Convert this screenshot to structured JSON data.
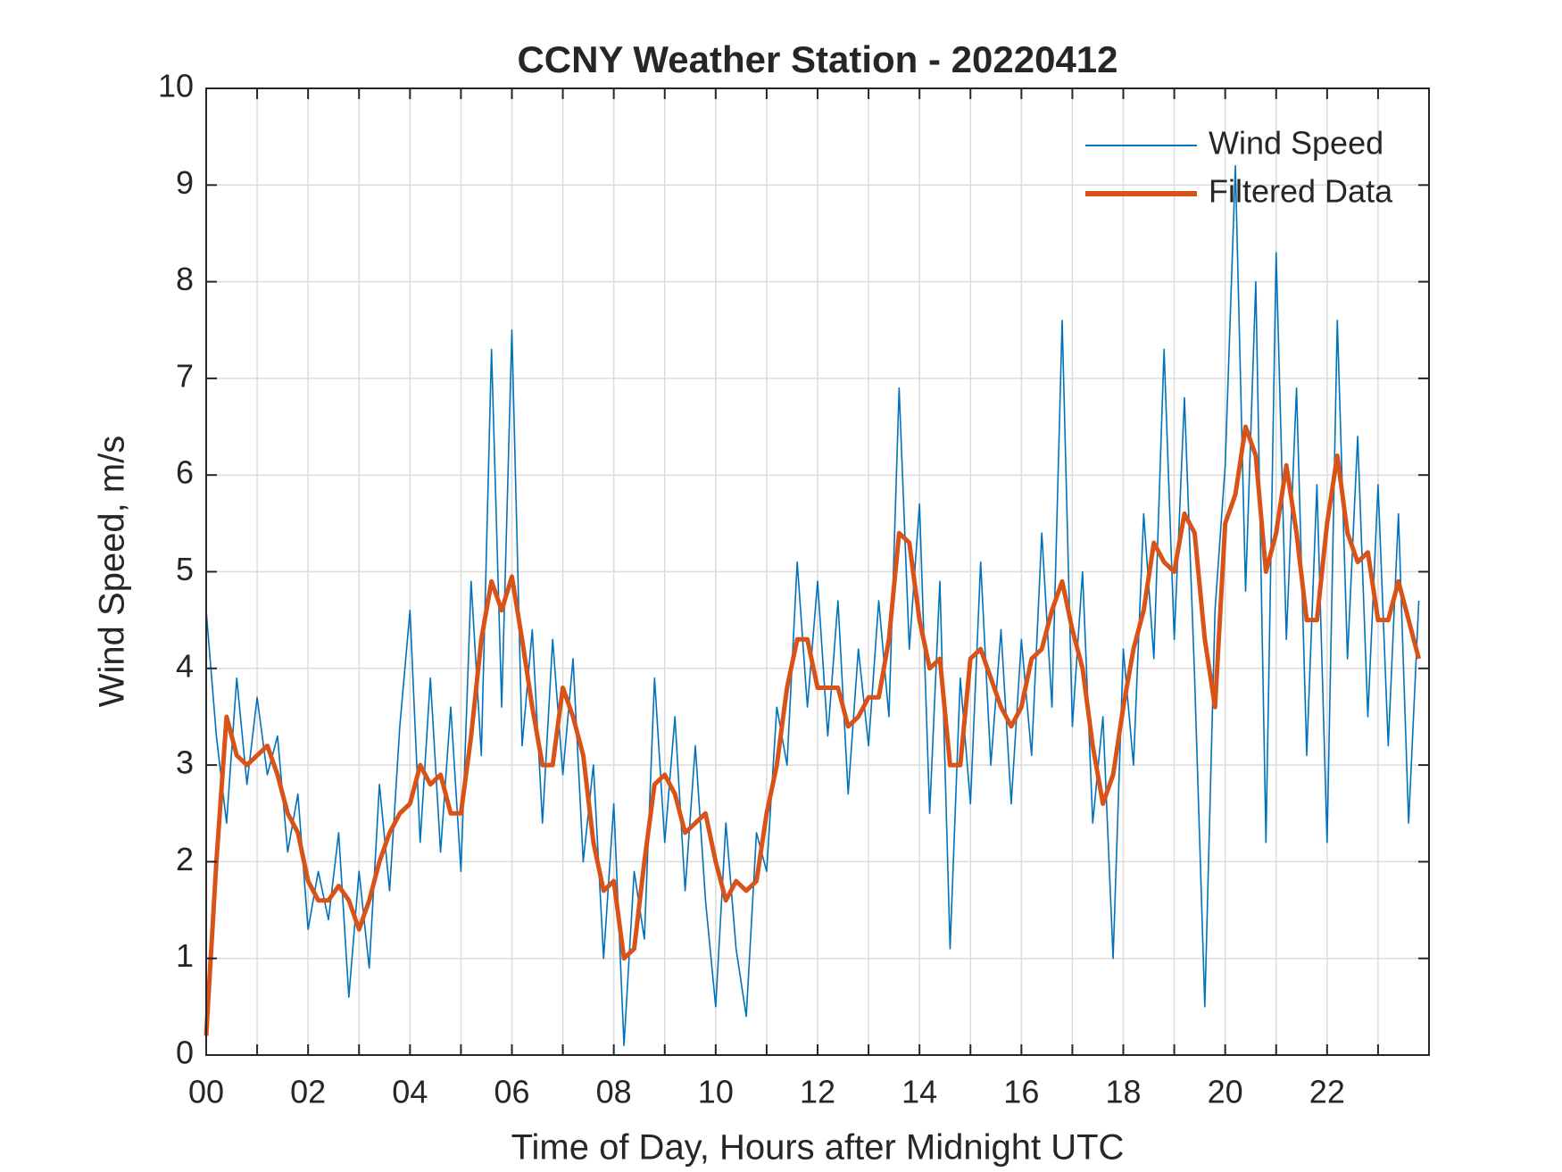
{
  "chart_data": {
    "type": "line",
    "title": "CCNY Weather Station - 20220412",
    "xlabel": "Time of Day, Hours after Midnight UTC",
    "ylabel": "Wind Speed, m/s",
    "x": [
      0,
      0.2,
      0.4,
      0.6,
      0.8,
      1,
      1.2,
      1.4,
      1.6,
      1.8,
      2,
      2.2,
      2.4,
      2.6,
      2.8,
      3,
      3.2,
      3.4,
      3.6,
      3.8,
      4,
      4.2,
      4.4,
      4.6,
      4.8,
      5,
      5.2,
      5.4,
      5.6,
      5.8,
      6,
      6.2,
      6.4,
      6.6,
      6.8,
      7,
      7.2,
      7.4,
      7.6,
      7.8,
      8,
      8.2,
      8.4,
      8.6,
      8.8,
      9,
      9.2,
      9.4,
      9.6,
      9.8,
      10,
      10.2,
      10.4,
      10.6,
      10.8,
      11,
      11.2,
      11.4,
      11.6,
      11.8,
      12,
      12.2,
      12.4,
      12.6,
      12.8,
      13,
      13.2,
      13.4,
      13.6,
      13.8,
      14,
      14.2,
      14.4,
      14.6,
      14.8,
      15,
      15.2,
      15.4,
      15.6,
      15.8,
      16,
      16.2,
      16.4,
      16.6,
      16.8,
      17,
      17.2,
      17.4,
      17.6,
      17.8,
      18,
      18.2,
      18.4,
      18.6,
      18.8,
      19,
      19.2,
      19.4,
      19.6,
      19.8,
      20,
      20.2,
      20.4,
      20.6,
      20.8,
      21,
      21.2,
      21.4,
      21.6,
      21.8,
      22,
      22.2,
      22.4,
      22.6,
      22.8,
      23,
      23.2,
      23.4,
      23.6,
      23.8
    ],
    "series": [
      {
        "name": "Wind Speed",
        "color": "#0072bd",
        "values": [
          4.6,
          3.3,
          2.4,
          3.9,
          2.8,
          3.7,
          2.9,
          3.3,
          2.1,
          2.7,
          1.3,
          1.9,
          1.4,
          2.3,
          0.6,
          1.9,
          0.9,
          2.8,
          1.7,
          3.4,
          4.6,
          2.2,
          3.9,
          2.1,
          3.6,
          1.9,
          4.9,
          3.1,
          7.3,
          3.6,
          7.5,
          3.2,
          4.4,
          2.4,
          4.3,
          2.9,
          4.1,
          2.0,
          3.0,
          1.0,
          2.6,
          0.1,
          1.9,
          1.2,
          3.9,
          2.2,
          3.5,
          1.7,
          3.2,
          1.6,
          0.5,
          2.4,
          1.1,
          0.4,
          2.3,
          1.9,
          3.6,
          3.0,
          5.1,
          3.6,
          4.9,
          3.3,
          4.7,
          2.7,
          4.2,
          3.2,
          4.7,
          3.5,
          6.9,
          4.2,
          5.7,
          2.5,
          4.9,
          1.1,
          3.9,
          2.6,
          5.1,
          3.0,
          4.4,
          2.6,
          4.3,
          3.1,
          5.4,
          3.6,
          7.6,
          3.4,
          5.0,
          2.4,
          3.5,
          1.0,
          4.2,
          3.0,
          5.6,
          4.1,
          7.3,
          4.3,
          6.8,
          3.9,
          0.5,
          4.6,
          6.1,
          9.2,
          4.8,
          8.0,
          2.2,
          8.3,
          4.3,
          6.9,
          3.1,
          5.9,
          2.2,
          7.6,
          4.1,
          6.4,
          3.5,
          5.9,
          3.2,
          5.6,
          2.4,
          4.7
        ]
      },
      {
        "name": "Filtered Data",
        "color": "#d95319",
        "values": [
          0.2,
          2.0,
          3.5,
          3.1,
          3.0,
          3.1,
          3.2,
          2.9,
          2.5,
          2.3,
          1.8,
          1.6,
          1.6,
          1.75,
          1.6,
          1.3,
          1.6,
          2.0,
          2.3,
          2.5,
          2.6,
          3.0,
          2.8,
          2.9,
          2.5,
          2.5,
          3.3,
          4.3,
          4.9,
          4.6,
          4.95,
          4.3,
          3.6,
          3.0,
          3.0,
          3.8,
          3.5,
          3.1,
          2.2,
          1.7,
          1.8,
          1.0,
          1.1,
          2.0,
          2.8,
          2.9,
          2.7,
          2.3,
          2.4,
          2.5,
          2.0,
          1.6,
          1.8,
          1.7,
          1.8,
          2.5,
          3.0,
          3.8,
          4.3,
          4.3,
          3.8,
          3.8,
          3.8,
          3.4,
          3.5,
          3.7,
          3.7,
          4.3,
          5.4,
          5.3,
          4.5,
          4.0,
          4.1,
          3.0,
          3.0,
          4.1,
          4.2,
          3.9,
          3.6,
          3.4,
          3.6,
          4.1,
          4.2,
          4.6,
          4.9,
          4.4,
          4.0,
          3.2,
          2.6,
          2.9,
          3.6,
          4.2,
          4.6,
          5.3,
          5.1,
          5.0,
          5.6,
          5.4,
          4.3,
          3.6,
          5.5,
          5.8,
          6.5,
          6.2,
          5.0,
          5.4,
          6.1,
          5.4,
          4.5,
          4.5,
          5.5,
          6.2,
          5.4,
          5.1,
          5.2,
          4.5,
          4.5,
          4.9,
          4.5,
          4.1
        ]
      }
    ],
    "xlim": [
      0,
      24
    ],
    "xticks": [
      {
        "value": 0,
        "label": "00"
      },
      {
        "value": 2,
        "label": "02"
      },
      {
        "value": 4,
        "label": "04"
      },
      {
        "value": 6,
        "label": "06"
      },
      {
        "value": 8,
        "label": "08"
      },
      {
        "value": 10,
        "label": "10"
      },
      {
        "value": 12,
        "label": "12"
      },
      {
        "value": 14,
        "label": "14"
      },
      {
        "value": 16,
        "label": "16"
      },
      {
        "value": 18,
        "label": "18"
      },
      {
        "value": 20,
        "label": "20"
      },
      {
        "value": 22,
        "label": "22"
      }
    ],
    "xminorticks": [
      1,
      3,
      5,
      7,
      9,
      11,
      13,
      15,
      17,
      19,
      21,
      23
    ],
    "ylim": [
      0,
      10
    ],
    "yticks": [
      0,
      1,
      2,
      3,
      4,
      5,
      6,
      7,
      8,
      9,
      10
    ],
    "grid": true,
    "legend": "northeast"
  }
}
